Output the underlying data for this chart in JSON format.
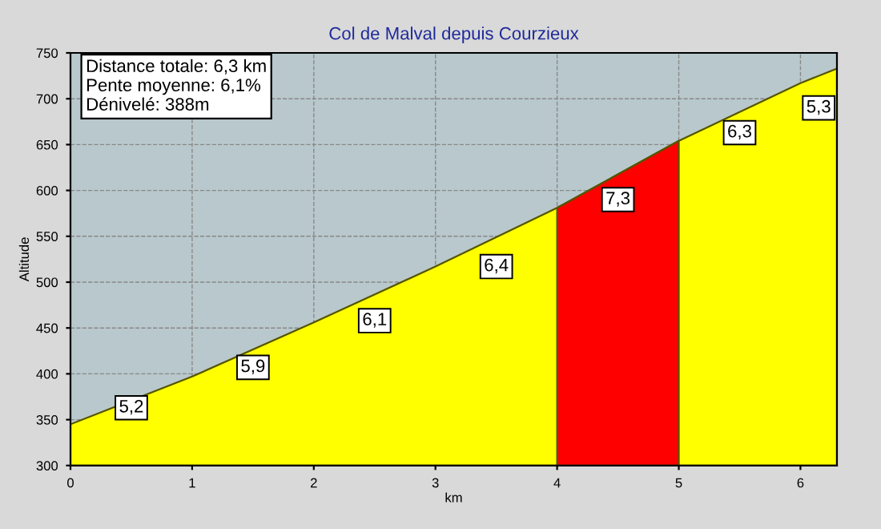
{
  "chart_data": {
    "type": "area",
    "title": "Col de Malval depuis Courzieux",
    "xlabel": "km",
    "ylabel": "Altitude",
    "series": [
      {
        "color": "#ffff00",
        "x": [
          0,
          1,
          2,
          3,
          4,
          5,
          6,
          6.3
        ],
        "values": [
          345,
          397,
          456,
          517,
          581,
          654,
          717,
          733
        ]
      },
      {
        "color": "#ff0000",
        "x": [
          4,
          5
        ],
        "values": [
          581,
          654
        ]
      }
    ],
    "annotations": [
      "Distance totale: 6,3 km\nPente moyenne: 6,1%\nDénivelé: 388m",
      {
        "text": "5,2",
        "x": 0.5,
        "y": 363
      },
      {
        "text": "5,9",
        "x": 1.5,
        "y": 407
      },
      {
        "text": "6,1",
        "x": 2.5,
        "y": 458
      },
      {
        "text": "6,4",
        "x": 3.5,
        "y": 517
      },
      {
        "text": "7,3",
        "x": 4.5,
        "y": 590
      },
      {
        "text": "6,3",
        "x": 5.5,
        "y": 663
      },
      {
        "text": "5,3",
        "x": 6.15,
        "y": 690
      }
    ],
    "xlim": [
      0,
      6.3
    ],
    "ylim": [
      300,
      750
    ],
    "xticks": [
      0,
      1,
      2,
      3,
      4,
      5,
      6
    ],
    "yticks": [
      300,
      350,
      400,
      450,
      500,
      550,
      600,
      650,
      700,
      750
    ],
    "grid": true,
    "line_style": "dashed"
  }
}
